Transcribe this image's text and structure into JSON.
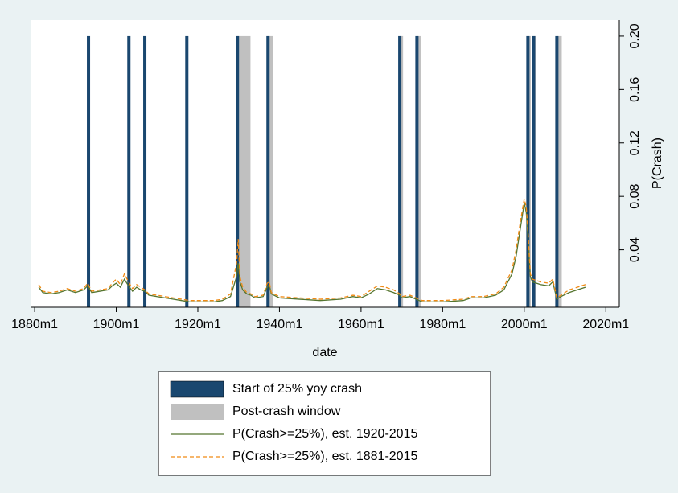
{
  "chart_data": {
    "type": "line",
    "x_label": "date",
    "y_label": "P(Crash)",
    "xlim": [
      1879,
      2023.3
    ],
    "ylim": [
      -0.003,
      0.212
    ],
    "xticks": [
      {
        "value": 1880,
        "label": "1880m1"
      },
      {
        "value": 1900,
        "label": "1900m1"
      },
      {
        "value": 1920,
        "label": "1920m1"
      },
      {
        "value": 1940,
        "label": "1940m1"
      },
      {
        "value": 1960,
        "label": "1960m1"
      },
      {
        "value": 1980,
        "label": "1980m1"
      },
      {
        "value": 2000,
        "label": "2000m1"
      },
      {
        "value": 2020,
        "label": "2020m1"
      }
    ],
    "yticks": [
      0.04,
      0.08,
      0.12,
      0.16,
      {
        "value": 0.2,
        "label": "0.20"
      }
    ],
    "y_axis_side": "right",
    "series": [
      {
        "name": "Start of 25% yoy crash",
        "type": "bar",
        "color": "#1a476f",
        "x": [
          1893.2,
          1903.1,
          1907.0,
          1917.3,
          1929.7,
          1937.2,
          1969.5,
          1973.7,
          2000.9,
          2002.3,
          2008.0
        ],
        "values": [
          0.2,
          0.2,
          0.2,
          0.2,
          0.2,
          0.2,
          0.2,
          0.2,
          0.2,
          0.2,
          0.2
        ]
      },
      {
        "name": "Post-crash window",
        "type": "window",
        "color": "#c0c0c0",
        "x_start": [
          1929.7,
          1937.2,
          1969.5,
          1973.7,
          2000.9,
          2002.3,
          2008.0
        ],
        "x_end": [
          1932.9,
          1938.4,
          1970.3,
          1974.6,
          2001.6,
          2002.9,
          2009.2
        ],
        "values": [
          0.2,
          0.2,
          0.2,
          0.2,
          0.2,
          0.2,
          0.2
        ]
      },
      {
        "name": "P(Crash>=25%), est. 1920-2015",
        "type": "line",
        "color": "#55752f",
        "dash": "solid",
        "x": [
          1881,
          1882,
          1884,
          1886,
          1888,
          1890,
          1892,
          1893,
          1894,
          1896,
          1898,
          1899,
          1900,
          1901,
          1902,
          1903,
          1904,
          1905,
          1906,
          1907,
          1908,
          1910,
          1912,
          1914,
          1916,
          1918,
          1920,
          1924,
          1926,
          1928,
          1929.5,
          1929.9,
          1930.3,
          1931,
          1932,
          1933,
          1934,
          1936,
          1937,
          1937.5,
          1938,
          1940,
          1945,
          1950,
          1955,
          1958,
          1960,
          1962,
          1964,
          1966,
          1968,
          1969.5,
          1970,
          1972,
          1973.5,
          1975,
          1980,
          1985,
          1987,
          1990,
          1993,
          1995,
          1997,
          1998,
          1999,
          2000,
          2000.5,
          2001,
          2001.5,
          2002,
          2004,
          2006,
          2007,
          2008,
          2009,
          2011,
          2013,
          2015
        ],
        "values": [
          0.012,
          0.008,
          0.007,
          0.008,
          0.01,
          0.008,
          0.01,
          0.013,
          0.008,
          0.009,
          0.01,
          0.013,
          0.015,
          0.012,
          0.018,
          0.013,
          0.009,
          0.012,
          0.01,
          0.009,
          0.006,
          0.005,
          0.004,
          0.003,
          0.002,
          0.001,
          0.001,
          0.001,
          0.002,
          0.005,
          0.02,
          0.03,
          0.016,
          0.01,
          0.007,
          0.006,
          0.004,
          0.005,
          0.012,
          0.014,
          0.007,
          0.004,
          0.003,
          0.002,
          0.003,
          0.005,
          0.004,
          0.007,
          0.011,
          0.01,
          0.008,
          0.006,
          0.004,
          0.005,
          0.003,
          0.001,
          0.001,
          0.002,
          0.004,
          0.004,
          0.006,
          0.01,
          0.022,
          0.035,
          0.055,
          0.075,
          0.068,
          0.045,
          0.02,
          0.016,
          0.014,
          0.013,
          0.016,
          0.003,
          0.005,
          0.008,
          0.01,
          0.012
        ]
      },
      {
        "name": "P(Crash>=25%), est. 1881-2015",
        "type": "line",
        "color": "#f08a14",
        "dash": "dashed",
        "x": [
          1881,
          1882,
          1884,
          1886,
          1888,
          1890,
          1892,
          1893,
          1894,
          1896,
          1898,
          1899,
          1900,
          1901,
          1902,
          1903,
          1904,
          1905,
          1906,
          1907,
          1908,
          1910,
          1912,
          1914,
          1916,
          1918,
          1920,
          1924,
          1926,
          1928,
          1929.5,
          1929.9,
          1930.3,
          1931,
          1932,
          1933,
          1934,
          1936,
          1937,
          1937.5,
          1938,
          1940,
          1945,
          1950,
          1955,
          1958,
          1960,
          1962,
          1964,
          1966,
          1968,
          1969.5,
          1970,
          1972,
          1973.5,
          1975,
          1980,
          1985,
          1987,
          1990,
          1993,
          1995,
          1997,
          1998,
          1999,
          2000,
          2000.5,
          2001,
          2001.5,
          2002,
          2004,
          2006,
          2007,
          2008,
          2009,
          2011,
          2013,
          2015
        ],
        "values": [
          0.014,
          0.009,
          0.008,
          0.009,
          0.011,
          0.009,
          0.011,
          0.015,
          0.009,
          0.01,
          0.011,
          0.015,
          0.018,
          0.014,
          0.022,
          0.016,
          0.011,
          0.014,
          0.012,
          0.01,
          0.007,
          0.006,
          0.005,
          0.004,
          0.003,
          0.002,
          0.002,
          0.002,
          0.003,
          0.007,
          0.03,
          0.048,
          0.02,
          0.012,
          0.008,
          0.007,
          0.005,
          0.006,
          0.015,
          0.016,
          0.008,
          0.005,
          0.004,
          0.003,
          0.004,
          0.006,
          0.005,
          0.009,
          0.013,
          0.012,
          0.01,
          0.007,
          0.005,
          0.006,
          0.004,
          0.002,
          0.002,
          0.003,
          0.005,
          0.005,
          0.007,
          0.012,
          0.025,
          0.04,
          0.06,
          0.078,
          0.072,
          0.05,
          0.022,
          0.018,
          0.016,
          0.015,
          0.018,
          0.004,
          0.006,
          0.01,
          0.012,
          0.014
        ]
      }
    ]
  }
}
